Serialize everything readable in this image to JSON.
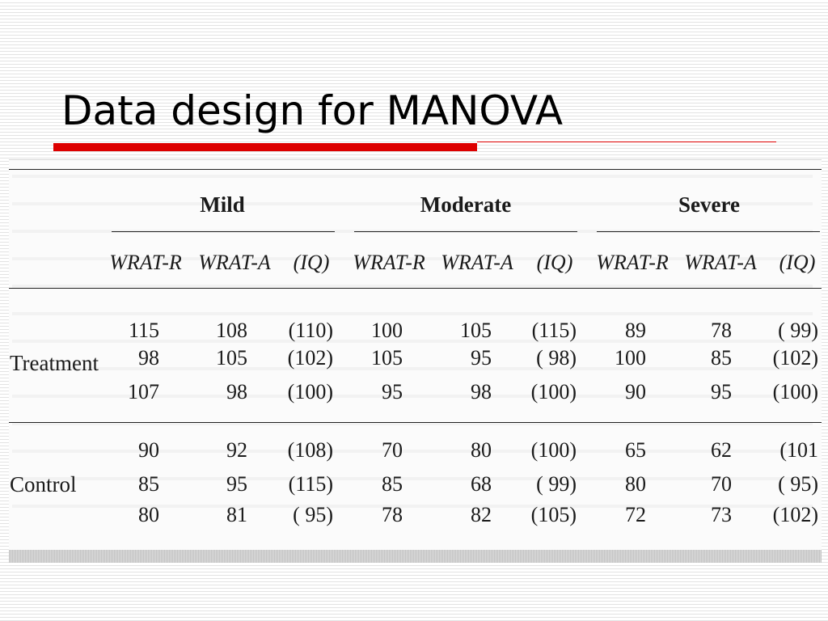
{
  "slide": {
    "title": "Data design for MANOVA"
  },
  "table": {
    "groups": [
      "Mild",
      "Moderate",
      "Severe"
    ],
    "measures": [
      "WRAT-R",
      "WRAT-A",
      "(IQ)"
    ],
    "rows": [
      {
        "label": "Treatment",
        "values": [
          [
            "115",
            "108",
            "(110)",
            "100",
            "105",
            "(115)",
            "89",
            "78",
            "( 99)"
          ],
          [
            "98",
            "105",
            "(102)",
            "105",
            "95",
            "( 98)",
            "100",
            "85",
            "(102)"
          ],
          [
            "107",
            "98",
            "(100)",
            "95",
            "98",
            "(100)",
            "90",
            "95",
            "(100)"
          ]
        ]
      },
      {
        "label": "Control",
        "values": [
          [
            "90",
            "92",
            "(108)",
            "70",
            "80",
            "(100)",
            "65",
            "62",
            "(101"
          ],
          [
            "85",
            "95",
            "(115)",
            "85",
            "68",
            "( 99)",
            "80",
            "70",
            "( 95)"
          ],
          [
            "80",
            "81",
            "( 95)",
            "78",
            "82",
            "(105)",
            "72",
            "73",
            "(102)"
          ]
        ]
      }
    ]
  }
}
